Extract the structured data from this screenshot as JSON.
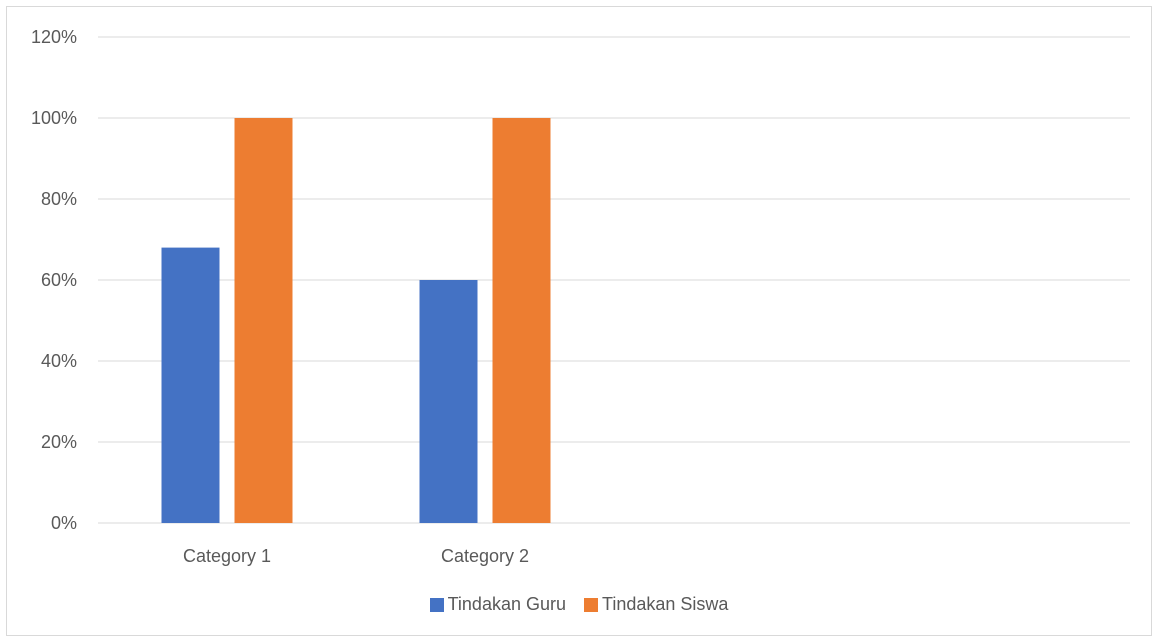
{
  "chart_data": {
    "type": "bar",
    "categories": [
      "Category 1",
      "Category 2"
    ],
    "series": [
      {
        "name": "Tindakan Guru",
        "values": [
          0.68,
          0.6
        ],
        "color": "#4472c4"
      },
      {
        "name": "Tindakan Siswa",
        "values": [
          1.0,
          1.0
        ],
        "color": "#ed7d31"
      }
    ],
    "ylim": [
      0,
      1.2
    ],
    "yticks": [
      "0%",
      "20%",
      "40%",
      "60%",
      "80%",
      "100%",
      "120%"
    ],
    "category_slots": 4,
    "grid": true,
    "legend_position": "bottom",
    "gridline_color": "#d9d9d9"
  }
}
